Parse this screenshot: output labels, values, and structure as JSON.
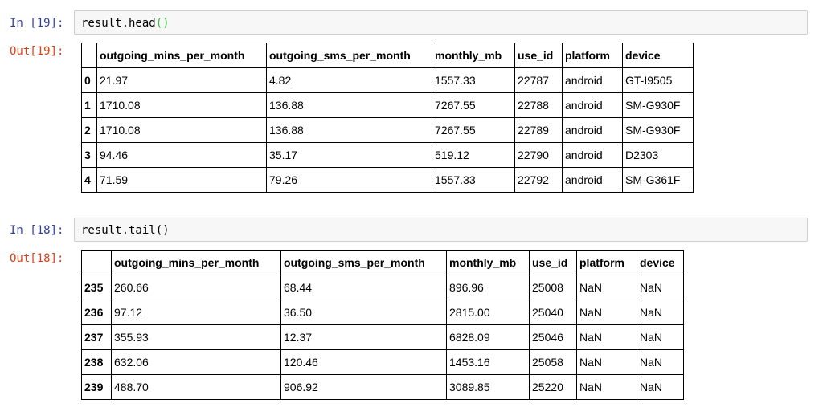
{
  "cells": [
    {
      "in_prompt": "In [19]:",
      "code_text": "result.head",
      "code_parens": "()",
      "out_prompt": "Out[19]:",
      "columns": [
        "outgoing_mins_per_month",
        "outgoing_sms_per_month",
        "monthly_mb",
        "use_id",
        "platform",
        "device"
      ],
      "rows": [
        {
          "index": "0",
          "values": [
            "21.97",
            "4.82",
            "1557.33",
            "22787",
            "android",
            "GT-I9505"
          ]
        },
        {
          "index": "1",
          "values": [
            "1710.08",
            "136.88",
            "7267.55",
            "22788",
            "android",
            "SM-G930F"
          ]
        },
        {
          "index": "2",
          "values": [
            "1710.08",
            "136.88",
            "7267.55",
            "22789",
            "android",
            "SM-G930F"
          ]
        },
        {
          "index": "3",
          "values": [
            "94.46",
            "35.17",
            "519.12",
            "22790",
            "android",
            "D2303"
          ]
        },
        {
          "index": "4",
          "values": [
            "71.59",
            "79.26",
            "1557.33",
            "22792",
            "android",
            "SM-G361F"
          ]
        }
      ]
    },
    {
      "in_prompt": "In [18]:",
      "code_text": "result.tail()",
      "code_parens": "",
      "out_prompt": "Out[18]:",
      "columns": [
        "outgoing_mins_per_month",
        "outgoing_sms_per_month",
        "monthly_mb",
        "use_id",
        "platform",
        "device"
      ],
      "rows": [
        {
          "index": "235",
          "values": [
            "260.66",
            "68.44",
            "896.96",
            "25008",
            "NaN",
            "NaN"
          ]
        },
        {
          "index": "236",
          "values": [
            "97.12",
            "36.50",
            "2815.00",
            "25040",
            "NaN",
            "NaN"
          ]
        },
        {
          "index": "237",
          "values": [
            "355.93",
            "12.37",
            "6828.09",
            "25046",
            "NaN",
            "NaN"
          ]
        },
        {
          "index": "238",
          "values": [
            "632.06",
            "120.46",
            "1453.16",
            "25058",
            "NaN",
            "NaN"
          ]
        },
        {
          "index": "239",
          "values": [
            "488.70",
            "906.92",
            "3089.85",
            "25220",
            "NaN",
            "NaN"
          ]
        }
      ]
    }
  ]
}
